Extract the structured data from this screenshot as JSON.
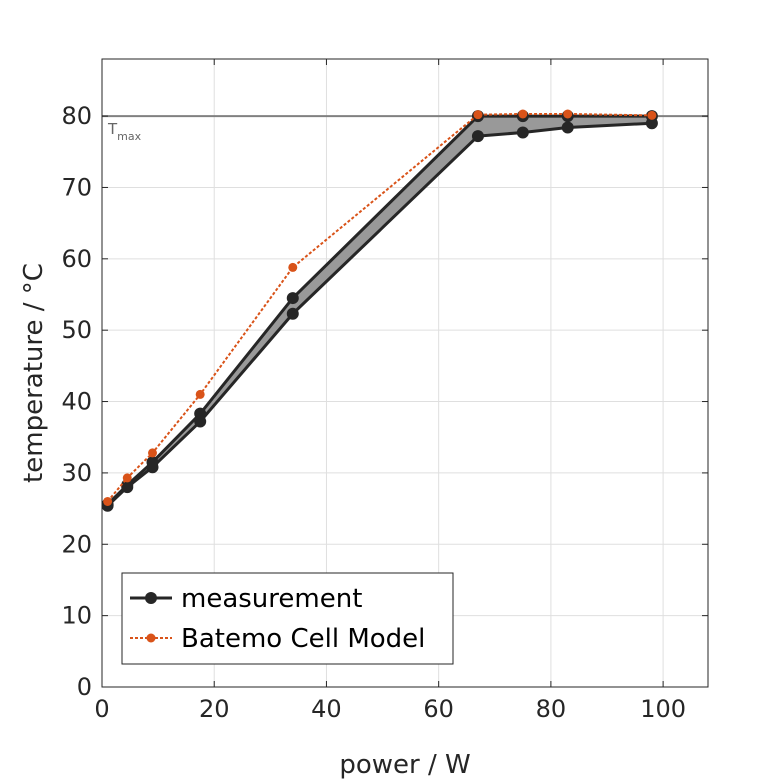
{
  "chart_data": {
    "type": "line",
    "title": "",
    "xlabel": "power / W",
    "ylabel": "temperature / °C",
    "xlim": [
      0,
      108
    ],
    "ylim": [
      0,
      88
    ],
    "xticks": [
      0,
      20,
      40,
      60,
      80,
      100
    ],
    "yticks": [
      0,
      10,
      20,
      30,
      40,
      50,
      60,
      70,
      80
    ],
    "grid": true,
    "legend_position": "bottom-left",
    "colors": {
      "measurement": "#262626",
      "band_fill": "#999999",
      "model": "#D95319",
      "tmax_line": "#808080",
      "grid": "#DFDFDF"
    },
    "series": [
      {
        "name": "measurement",
        "style": "solid-markers",
        "x": [
          1,
          4.5,
          9,
          17.5,
          34,
          67,
          75,
          83,
          98
        ],
        "y": [
          25.4,
          28,
          30.8,
          37.2,
          52.3,
          77.2,
          77.7,
          78.4,
          79
        ],
        "upper": [
          25.6,
          28.3,
          31.5,
          38.3,
          54.5,
          80,
          80,
          80,
          80
        ]
      },
      {
        "name": "Batemo Cell Model",
        "style": "dotted-markers",
        "x": [
          1,
          4.5,
          9,
          17.5,
          34,
          67,
          75,
          83,
          98
        ],
        "y": [
          26,
          29.3,
          32.8,
          41,
          58.8,
          80.2,
          80.3,
          80.3,
          80.1
        ]
      }
    ],
    "annotations": [
      {
        "text": "T",
        "subscript": "max",
        "y": 80
      }
    ]
  }
}
